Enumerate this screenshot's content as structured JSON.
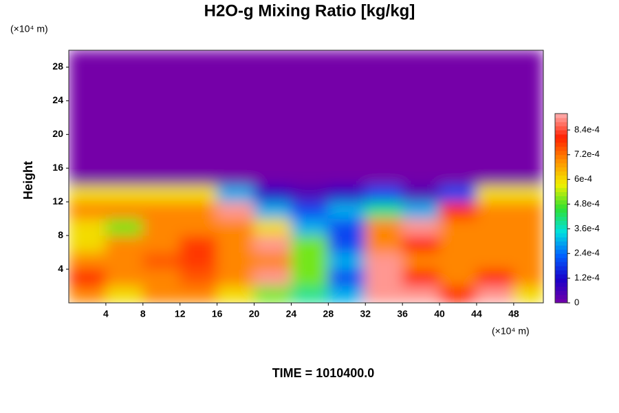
{
  "chart_data": {
    "type": "heatmap",
    "title": "H2O-g Mixing Ratio [kg/kg]",
    "y_label": "Height",
    "x_unit": "(×10⁴ m)",
    "y_unit": "(×10⁴ m)",
    "footer": "TIME = 1010400.0",
    "xlim": [
      0,
      51.2
    ],
    "ylim": [
      0,
      30
    ],
    "xticks": [
      4,
      8,
      12,
      16,
      20,
      24,
      28,
      32,
      36,
      40,
      44,
      48
    ],
    "yticks": [
      4,
      8,
      12,
      16,
      20,
      24,
      28
    ],
    "x": [
      2,
      6,
      10,
      14,
      18,
      22,
      26,
      30,
      34,
      38,
      42,
      46,
      50
    ],
    "y": [
      1,
      3,
      5,
      7,
      9,
      11,
      13,
      15,
      17,
      19,
      21,
      23,
      25,
      27,
      29
    ],
    "z": [
      [
        0.0007,
        0.0006,
        0.0007,
        0.0007,
        0.0006,
        0.0005,
        0.0004,
        0.0003,
        0.0009,
        0.0009,
        0.0008,
        0.0009,
        0.0006
      ],
      [
        0.0008,
        0.0007,
        0.0007,
        0.00075,
        0.0007,
        0.0009,
        0.0005,
        0.0002,
        0.0009,
        0.0008,
        0.0007,
        0.0008,
        0.0007
      ],
      [
        0.0007,
        0.0007,
        0.00075,
        0.00078,
        0.0007,
        0.0007,
        0.0005,
        0.0003,
        0.0009,
        0.0007,
        0.0007,
        0.0007,
        0.0007
      ],
      [
        0.0006,
        0.0007,
        0.0007,
        0.00078,
        0.0007,
        0.0009,
        0.0005,
        0.0002,
        0.0007,
        0.0008,
        0.0007,
        0.0007,
        0.0007
      ],
      [
        0.0006,
        0.0005,
        0.0007,
        0.0007,
        0.0007,
        0.0006,
        0.0003,
        0.0002,
        0.0007,
        0.0009,
        0.0007,
        0.0007,
        0.0007
      ],
      [
        0.0007,
        0.0007,
        0.0007,
        0.0007,
        0.0009,
        0.0003,
        0.0002,
        0.0003,
        0.0004,
        0.0003,
        0.0008,
        0.0007,
        0.0007
      ],
      [
        0.0006,
        0.0006,
        0.0006,
        0.0006,
        0.0003,
        0.0001,
        5e-05,
        0.0001,
        0.0002,
        5e-05,
        0.0002,
        0.0006,
        0.0006
      ],
      [
        0,
        0,
        0,
        0,
        0,
        0,
        0,
        0,
        0,
        0,
        0,
        0,
        0
      ],
      [
        0,
        0,
        0,
        0,
        0,
        0,
        0,
        0,
        0,
        0,
        0,
        0,
        0
      ],
      [
        0,
        0,
        0,
        0,
        0,
        0,
        0,
        0,
        0,
        0,
        0,
        0,
        0
      ],
      [
        0,
        0,
        0,
        0,
        0,
        0,
        0,
        0,
        0,
        0,
        0,
        0,
        0
      ],
      [
        0,
        0,
        0,
        0,
        0,
        0,
        0,
        0,
        0,
        0,
        0,
        0,
        0
      ],
      [
        0,
        0,
        0,
        0,
        0,
        0,
        0,
        0,
        0,
        0,
        0,
        0,
        0
      ],
      [
        0,
        0,
        0,
        0,
        0,
        0,
        0,
        0,
        0,
        0,
        0,
        0,
        0
      ],
      [
        0,
        0,
        0,
        0,
        0,
        0,
        0,
        0,
        0,
        0,
        0,
        0,
        0
      ]
    ],
    "zlim": [
      0,
      0.00092
    ],
    "zticks": [
      0,
      {
        "value": 0.00012,
        "label": "1.2e-4"
      },
      {
        "value": 0.00024,
        "label": "2.4e-4"
      },
      {
        "value": 0.00036,
        "label": "3.6e-4"
      },
      {
        "value": 0.00048,
        "label": "4.8e-4"
      },
      {
        "value": 0.0006,
        "label": "6e-4"
      },
      {
        "value": 0.00072,
        "label": "7.2e-4"
      },
      {
        "value": 0.00084,
        "label": "8.4e-4"
      }
    ],
    "colormap": [
      "#7400a8",
      "#1a00c8",
      "#0060ff",
      "#00e0e0",
      "#30e030",
      "#f0f000",
      "#ff9000",
      "#ff2000",
      "#ffb0b0"
    ]
  }
}
